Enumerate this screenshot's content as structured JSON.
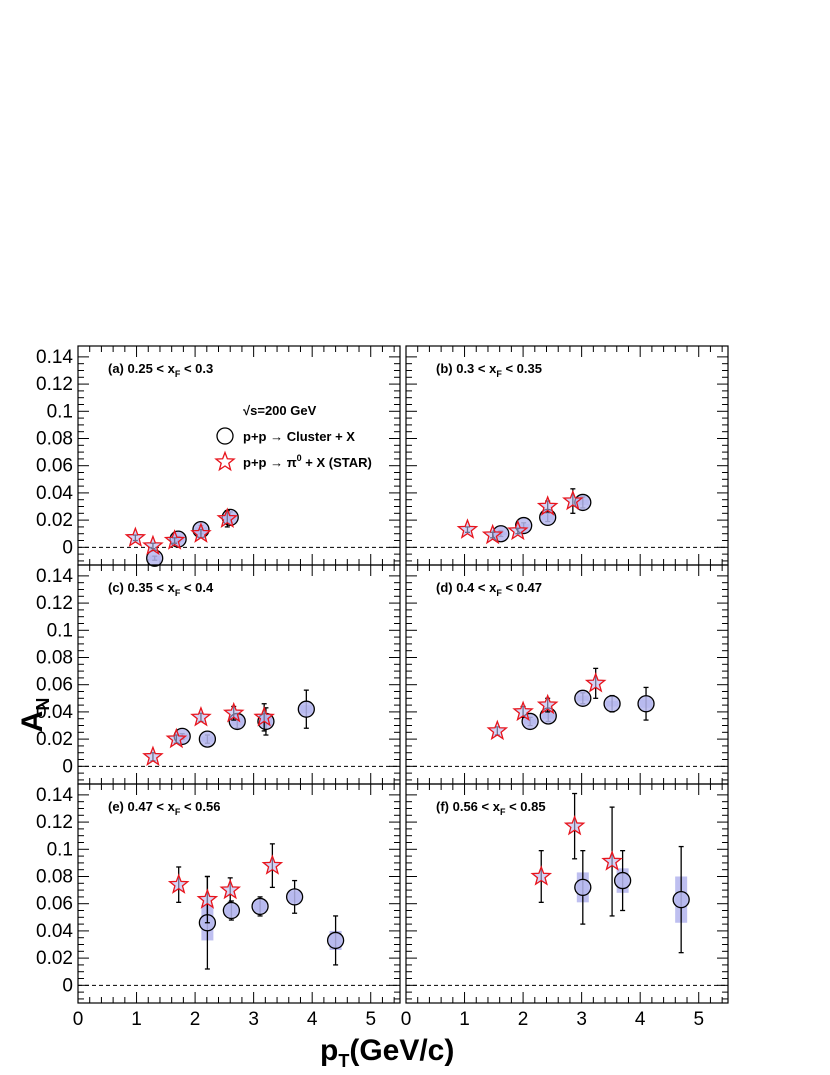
{
  "chart_data": {
    "type": "scatter",
    "figure": {
      "y_title_main": "A",
      "y_title_sub": "N",
      "x_title_main": "p",
      "x_title_sub": "T",
      "x_title_rest": "(GeV/c)",
      "xlim": [
        0,
        5.5
      ],
      "ylim": [
        -0.013,
        0.148
      ],
      "x_ticks": [
        "0",
        "1",
        "2",
        "3",
        "4",
        "5"
      ],
      "y_ticks": [
        "0",
        "0.02",
        "0.04",
        "0.06",
        "0.08",
        "0.1",
        "0.12",
        "0.14"
      ],
      "zero_line": "dashed"
    },
    "legend": {
      "energy_text": "√s=200 GeV",
      "cluster_text": "p+p → Cluster + X",
      "star_text_pre": "p+p → π",
      "star_text_sup": "0",
      "star_text_post": " + X (STAR)",
      "placement": "panel (a), upper-center"
    },
    "series_styles": {
      "cluster": {
        "marker": "open circle",
        "syst_fill": "#b7b8ee"
      },
      "star": {
        "marker": "open star",
        "stroke": "#e8141c",
        "fill": "#b7b8ee"
      }
    },
    "panels": [
      {
        "label_pre": "(a)   0.25 < x",
        "label_sub": "F",
        "label_post": " < 0.3",
        "cluster": [
          {
            "x": 1.31,
            "y": -0.008,
            "err": 0.0015,
            "syst": 0.002
          },
          {
            "x": 1.71,
            "y": 0.006,
            "err": 0.002,
            "syst": 0.002
          },
          {
            "x": 2.1,
            "y": 0.013,
            "err": 0.003,
            "syst": 0.002
          },
          {
            "x": 2.6,
            "y": 0.022,
            "err": 0.004,
            "syst": 0.002
          }
        ],
        "star": [
          {
            "x": 0.98,
            "y": 0.007,
            "err": 0.002
          },
          {
            "x": 1.28,
            "y": 0.001,
            "err": 0.002
          },
          {
            "x": 1.65,
            "y": 0.005,
            "err": 0.002
          },
          {
            "x": 2.1,
            "y": 0.01,
            "err": 0.003
          },
          {
            "x": 2.55,
            "y": 0.021,
            "err": 0.006
          }
        ]
      },
      {
        "label_pre": "(b)   0.3 < x",
        "label_sub": "F",
        "label_post": " < 0.35",
        "cluster": [
          {
            "x": 1.62,
            "y": 0.01,
            "err": 0.002,
            "syst": 0.001
          },
          {
            "x": 2.01,
            "y": 0.016,
            "err": 0.002,
            "syst": 0.001
          },
          {
            "x": 2.42,
            "y": 0.022,
            "err": 0.003,
            "syst": 0.002
          },
          {
            "x": 3.02,
            "y": 0.033,
            "err": 0.004,
            "syst": 0.002
          }
        ],
        "star": [
          {
            "x": 1.05,
            "y": 0.013,
            "err": 0.002
          },
          {
            "x": 1.48,
            "y": 0.009,
            "err": 0.002
          },
          {
            "x": 1.91,
            "y": 0.012,
            "err": 0.002
          },
          {
            "x": 2.42,
            "y": 0.03,
            "err": 0.004
          },
          {
            "x": 2.85,
            "y": 0.034,
            "err": 0.009
          }
        ]
      },
      {
        "label_pre": "(c)   0.35 < x",
        "label_sub": "F",
        "label_post": " < 0.4",
        "cluster": [
          {
            "x": 1.78,
            "y": 0.022,
            "err": 0.002,
            "syst": 0.002
          },
          {
            "x": 2.21,
            "y": 0.02,
            "err": 0.003,
            "syst": 0.002
          },
          {
            "x": 2.72,
            "y": 0.033,
            "err": 0.005,
            "syst": 0.003
          },
          {
            "x": 3.21,
            "y": 0.033,
            "err": 0.01,
            "syst": 0.003
          },
          {
            "x": 3.9,
            "y": 0.042,
            "err": 0.014,
            "syst": 0.003
          }
        ],
        "star": [
          {
            "x": 1.28,
            "y": 0.007,
            "err": 0.003
          },
          {
            "x": 1.68,
            "y": 0.02,
            "err": 0.003
          },
          {
            "x": 2.1,
            "y": 0.036,
            "err": 0.003
          },
          {
            "x": 2.66,
            "y": 0.039,
            "err": 0.005
          },
          {
            "x": 3.18,
            "y": 0.036,
            "err": 0.01
          }
        ]
      },
      {
        "label_pre": "(d)   0.4 < x",
        "label_sub": "F",
        "label_post": " < 0.47",
        "cluster": [
          {
            "x": 2.12,
            "y": 0.033,
            "err": 0.003,
            "syst": 0.002
          },
          {
            "x": 2.43,
            "y": 0.037,
            "err": 0.004,
            "syst": 0.002
          },
          {
            "x": 3.02,
            "y": 0.05,
            "err": 0.004,
            "syst": 0.002
          },
          {
            "x": 3.52,
            "y": 0.046,
            "err": 0.006,
            "syst": 0.002
          },
          {
            "x": 4.1,
            "y": 0.046,
            "err": 0.012,
            "syst": 0.003
          }
        ],
        "star": [
          {
            "x": 1.56,
            "y": 0.026,
            "err": 0.003
          },
          {
            "x": 2.0,
            "y": 0.04,
            "err": 0.004
          },
          {
            "x": 2.42,
            "y": 0.045,
            "err": 0.005
          },
          {
            "x": 3.24,
            "y": 0.061,
            "err": 0.011
          }
        ]
      },
      {
        "label_pre": "(e)   0.47 < x",
        "label_sub": "F",
        "label_post": " < 0.56",
        "cluster": [
          {
            "x": 2.21,
            "y": 0.046,
            "err": 0.034,
            "syst": 0.013
          },
          {
            "x": 2.62,
            "y": 0.055,
            "err": 0.007,
            "syst": 0.004
          },
          {
            "x": 3.11,
            "y": 0.058,
            "err": 0.007,
            "syst": 0.004
          },
          {
            "x": 3.7,
            "y": 0.065,
            "err": 0.012,
            "syst": 0.004
          },
          {
            "x": 4.4,
            "y": 0.033,
            "err": 0.018,
            "syst": 0.007
          }
        ],
        "star": [
          {
            "x": 1.72,
            "y": 0.074,
            "err": 0.013
          },
          {
            "x": 2.21,
            "y": 0.063,
            "err": 0.017
          },
          {
            "x": 2.6,
            "y": 0.07,
            "err": 0.009
          },
          {
            "x": 3.32,
            "y": 0.088,
            "err": 0.016
          }
        ]
      },
      {
        "label_pre": "(f)   0.56 < x",
        "label_sub": "F",
        "label_post": " < 0.85",
        "cluster": [
          {
            "x": 3.02,
            "y": 0.072,
            "err": 0.027,
            "syst": 0.011
          },
          {
            "x": 3.7,
            "y": 0.077,
            "err": 0.022,
            "syst": 0.009
          },
          {
            "x": 4.7,
            "y": 0.063,
            "err": 0.039,
            "syst": 0.017
          }
        ],
        "star": [
          {
            "x": 2.31,
            "y": 0.08,
            "err": 0.019
          },
          {
            "x": 2.88,
            "y": 0.117,
            "err": 0.024
          },
          {
            "x": 3.52,
            "y": 0.091,
            "err": 0.04
          }
        ]
      }
    ]
  }
}
